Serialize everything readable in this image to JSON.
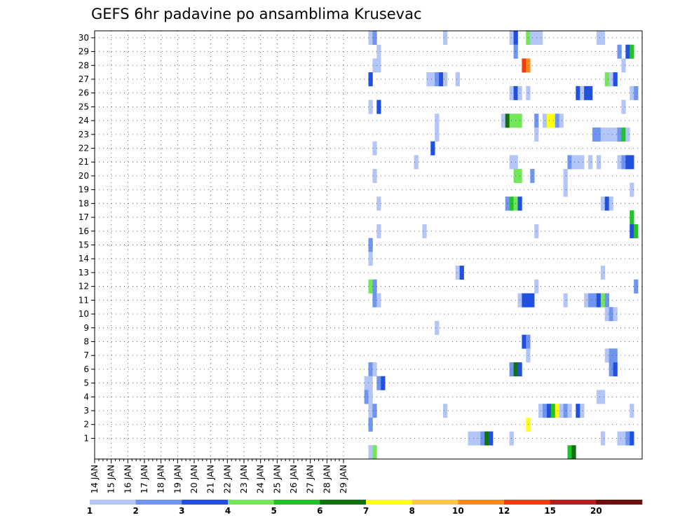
{
  "chart_data": {
    "type": "heatmap",
    "title": "GEFS 6hr padavine po ansamblima Krusevac",
    "xlabel": "",
    "ylabel": "",
    "x_ticks": [
      "14 JAN",
      "15 JAN",
      "16 JAN",
      "17 JAN",
      "18 JAN",
      "19 JAN",
      "20 JAN",
      "21 JAN",
      "22 JAN",
      "23 JAN",
      "24 JAN",
      "25 JAN",
      "26 JAN",
      "27 JAN",
      "28 JAN",
      "29 JAN"
    ],
    "y_ticks": [
      "1",
      "2",
      "3",
      "4",
      "5",
      "6",
      "7",
      "8",
      "9",
      "10",
      "11",
      "12",
      "13",
      "14",
      "15",
      "16",
      "17",
      "18",
      "19",
      "20",
      "21",
      "22",
      "23",
      "24",
      "25",
      "26",
      "27",
      "28",
      "29",
      "30"
    ],
    "y_range": [
      0,
      30
    ],
    "time_steps_per_day": 4,
    "grid": true,
    "colorbar": {
      "position": "bottom",
      "labels": [
        "1",
        "2",
        "3",
        "4",
        "5",
        "6",
        "7",
        "8",
        "10",
        "12",
        "15",
        "20"
      ],
      "colors": [
        "#b3c6f5",
        "#6f95ee",
        "#2050dd",
        "#73e65a",
        "#22c32a",
        "#0e730f",
        "#ffff1a",
        "#ffc648",
        "#ff8a1a",
        "#ee3c14",
        "#b41e1e",
        "#6b0f0f"
      ]
    },
    "cells": [
      {
        "member": 30,
        "x": [
          [
            66,
            1
          ],
          [
            67,
            2
          ],
          [
            84,
            1
          ],
          [
            100,
            1
          ],
          [
            101,
            3
          ],
          [
            104,
            4
          ],
          [
            105,
            1
          ],
          [
            106,
            1
          ],
          [
            107,
            1
          ],
          [
            121,
            1
          ],
          [
            122,
            1
          ]
        ]
      },
      {
        "member": 29,
        "x": [
          [
            68,
            1
          ],
          [
            101,
            2
          ],
          [
            126,
            2
          ],
          [
            128,
            3
          ],
          [
            129,
            5
          ]
        ]
      },
      {
        "member": 28,
        "x": [
          [
            67,
            1
          ],
          [
            68,
            1
          ],
          [
            103,
            10
          ],
          [
            104,
            9
          ],
          [
            127,
            1
          ]
        ]
      },
      {
        "member": 27,
        "x": [
          [
            66,
            3
          ],
          [
            80,
            1
          ],
          [
            81,
            1
          ],
          [
            82,
            2
          ],
          [
            83,
            3
          ],
          [
            84,
            1
          ],
          [
            87,
            1
          ],
          [
            123,
            4
          ],
          [
            124,
            1
          ],
          [
            125,
            3
          ]
        ]
      },
      {
        "member": 26,
        "x": [
          [
            100,
            1
          ],
          [
            101,
            3
          ],
          [
            102,
            1
          ],
          [
            104,
            1
          ],
          [
            116,
            3
          ],
          [
            117,
            1
          ],
          [
            118,
            3
          ],
          [
            119,
            3
          ],
          [
            129,
            1
          ],
          [
            130,
            2
          ]
        ]
      },
      {
        "member": 25,
        "x": [
          [
            66,
            1
          ],
          [
            68,
            3
          ],
          [
            127,
            1
          ]
        ]
      },
      {
        "member": 24,
        "x": [
          [
            82,
            1
          ],
          [
            98,
            1
          ],
          [
            99,
            6
          ],
          [
            100,
            4
          ],
          [
            101,
            4
          ],
          [
            102,
            4
          ],
          [
            106,
            2
          ],
          [
            108,
            1
          ],
          [
            109,
            7
          ],
          [
            110,
            7
          ],
          [
            111,
            2
          ],
          [
            112,
            1
          ]
        ]
      },
      {
        "member": 23,
        "x": [
          [
            82,
            1
          ],
          [
            106,
            1
          ],
          [
            120,
            2
          ],
          [
            121,
            2
          ],
          [
            122,
            1
          ],
          [
            123,
            1
          ],
          [
            124,
            1
          ],
          [
            125,
            1
          ],
          [
            126,
            2
          ],
          [
            127,
            5
          ],
          [
            128,
            1
          ]
        ]
      },
      {
        "member": 22,
        "x": [
          [
            67,
            1
          ],
          [
            81,
            3
          ]
        ]
      },
      {
        "member": 21,
        "x": [
          [
            77,
            1
          ],
          [
            100,
            1
          ],
          [
            101,
            1
          ],
          [
            114,
            2
          ],
          [
            115,
            1
          ],
          [
            116,
            1
          ],
          [
            117,
            1
          ],
          [
            119,
            1
          ],
          [
            121,
            1
          ],
          [
            126,
            1
          ],
          [
            127,
            2
          ],
          [
            128,
            3
          ],
          [
            129,
            3
          ]
        ]
      },
      {
        "member": 20,
        "x": [
          [
            67,
            1
          ],
          [
            101,
            4
          ],
          [
            102,
            4
          ],
          [
            105,
            2
          ],
          [
            113,
            1
          ]
        ]
      },
      {
        "member": 19,
        "x": [
          [
            113,
            1
          ],
          [
            129,
            1
          ]
        ]
      },
      {
        "member": 18,
        "x": [
          [
            68,
            1
          ],
          [
            99,
            2
          ],
          [
            100,
            5
          ],
          [
            101,
            4
          ],
          [
            102,
            3
          ],
          [
            122,
            1
          ],
          [
            123,
            3
          ],
          [
            124,
            1
          ]
        ]
      },
      {
        "member": 17,
        "x": [
          [
            129,
            5
          ]
        ]
      },
      {
        "member": 16,
        "x": [
          [
            68,
            1
          ],
          [
            79,
            1
          ],
          [
            106,
            1
          ],
          [
            129,
            3
          ],
          [
            130,
            5
          ]
        ]
      },
      {
        "member": 15,
        "x": [
          [
            66,
            2
          ]
        ]
      },
      {
        "member": 14,
        "x": [
          [
            66,
            1
          ]
        ]
      },
      {
        "member": 13,
        "x": [
          [
            87,
            1
          ],
          [
            88,
            3
          ],
          [
            122,
            1
          ]
        ]
      },
      {
        "member": 12,
        "x": [
          [
            66,
            4
          ],
          [
            67,
            2
          ],
          [
            106,
            1
          ],
          [
            130,
            2
          ]
        ]
      },
      {
        "member": 11,
        "x": [
          [
            67,
            2
          ],
          [
            68,
            1
          ],
          [
            102,
            1
          ],
          [
            103,
            3
          ],
          [
            104,
            3
          ],
          [
            105,
            3
          ],
          [
            113,
            1
          ],
          [
            118,
            1
          ],
          [
            119,
            2
          ],
          [
            120,
            2
          ],
          [
            121,
            3
          ],
          [
            122,
            4
          ],
          [
            123,
            2
          ]
        ]
      },
      {
        "member": 10,
        "x": [
          [
            123,
            1
          ],
          [
            124,
            2
          ],
          [
            125,
            1
          ]
        ]
      },
      {
        "member": 9,
        "x": [
          [
            82,
            1
          ]
        ]
      },
      {
        "member": 8,
        "x": [
          [
            103,
            3
          ],
          [
            104,
            2
          ]
        ]
      },
      {
        "member": 7,
        "x": [
          [
            104,
            1
          ],
          [
            123,
            1
          ],
          [
            124,
            2
          ],
          [
            125,
            2
          ]
        ]
      },
      {
        "member": 6,
        "x": [
          [
            66,
            2
          ],
          [
            67,
            1
          ],
          [
            100,
            2
          ],
          [
            101,
            6
          ],
          [
            102,
            3
          ],
          [
            124,
            2
          ],
          [
            125,
            3
          ]
        ]
      },
      {
        "member": 5,
        "x": [
          [
            65,
            1
          ],
          [
            66,
            1
          ],
          [
            68,
            2
          ],
          [
            69,
            3
          ]
        ]
      },
      {
        "member": 4,
        "x": [
          [
            65,
            2
          ],
          [
            66,
            1
          ],
          [
            121,
            1
          ],
          [
            122,
            1
          ]
        ]
      },
      {
        "member": 3,
        "x": [
          [
            66,
            1
          ],
          [
            67,
            2
          ],
          [
            84,
            1
          ],
          [
            107,
            1
          ],
          [
            108,
            2
          ],
          [
            109,
            3
          ],
          [
            110,
            5
          ],
          [
            111,
            7
          ],
          [
            112,
            1
          ],
          [
            113,
            2
          ],
          [
            114,
            1
          ],
          [
            116,
            3
          ],
          [
            117,
            1
          ],
          [
            129,
            1
          ]
        ]
      },
      {
        "member": 2,
        "x": [
          [
            66,
            2
          ],
          [
            104,
            7
          ]
        ]
      },
      {
        "member": 1,
        "x": [
          [
            90,
            1
          ],
          [
            91,
            1
          ],
          [
            92,
            1
          ],
          [
            93,
            2
          ],
          [
            94,
            6
          ],
          [
            95,
            3
          ],
          [
            100,
            1
          ],
          [
            122,
            1
          ],
          [
            126,
            1
          ],
          [
            127,
            1
          ],
          [
            128,
            2
          ],
          [
            129,
            3
          ]
        ]
      },
      {
        "member": 0,
        "x": [
          [
            66,
            1
          ],
          [
            67,
            4
          ],
          [
            114,
            5
          ],
          [
            115,
            6
          ]
        ]
      }
    ]
  }
}
